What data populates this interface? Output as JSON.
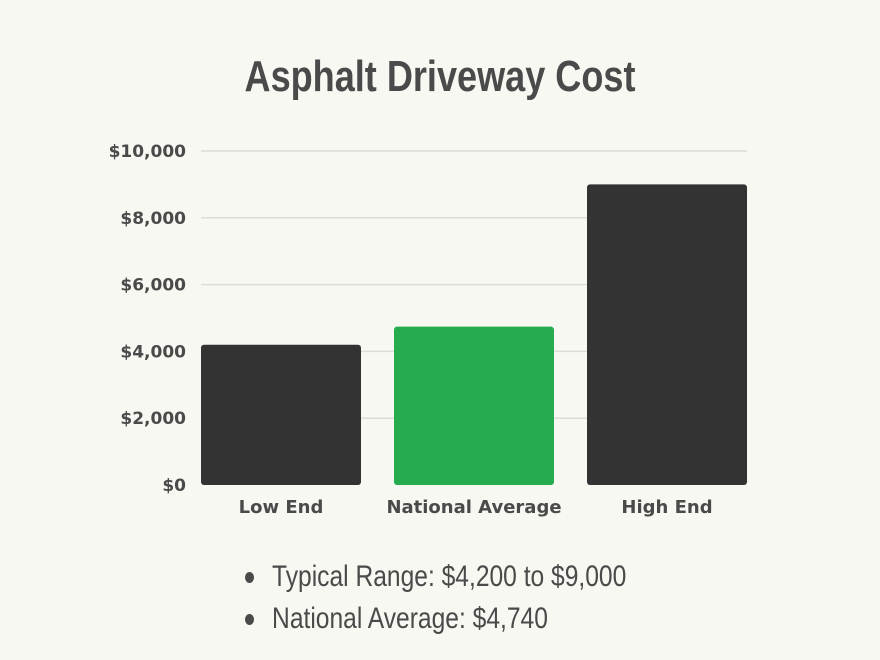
{
  "chart_data": {
    "type": "bar",
    "title": "Asphalt Driveway Cost",
    "categories": [
      "Low End",
      "National Average",
      "High End"
    ],
    "values": [
      4200,
      4740,
      9000
    ],
    "colors": [
      "#333333",
      "#27ab4f",
      "#333333"
    ],
    "ylim": [
      0,
      10000
    ],
    "yticks": [
      0,
      2000,
      4000,
      6000,
      8000,
      10000
    ],
    "ytick_labels": [
      "$0",
      "$2,000",
      "$4,000",
      "$6,000",
      "$8,000",
      "$10,000"
    ],
    "grid": true,
    "xlabel": "",
    "ylabel": ""
  },
  "notes": [
    "Typical Range: $4,200 to $9,000",
    "National Average: $4,740"
  ]
}
